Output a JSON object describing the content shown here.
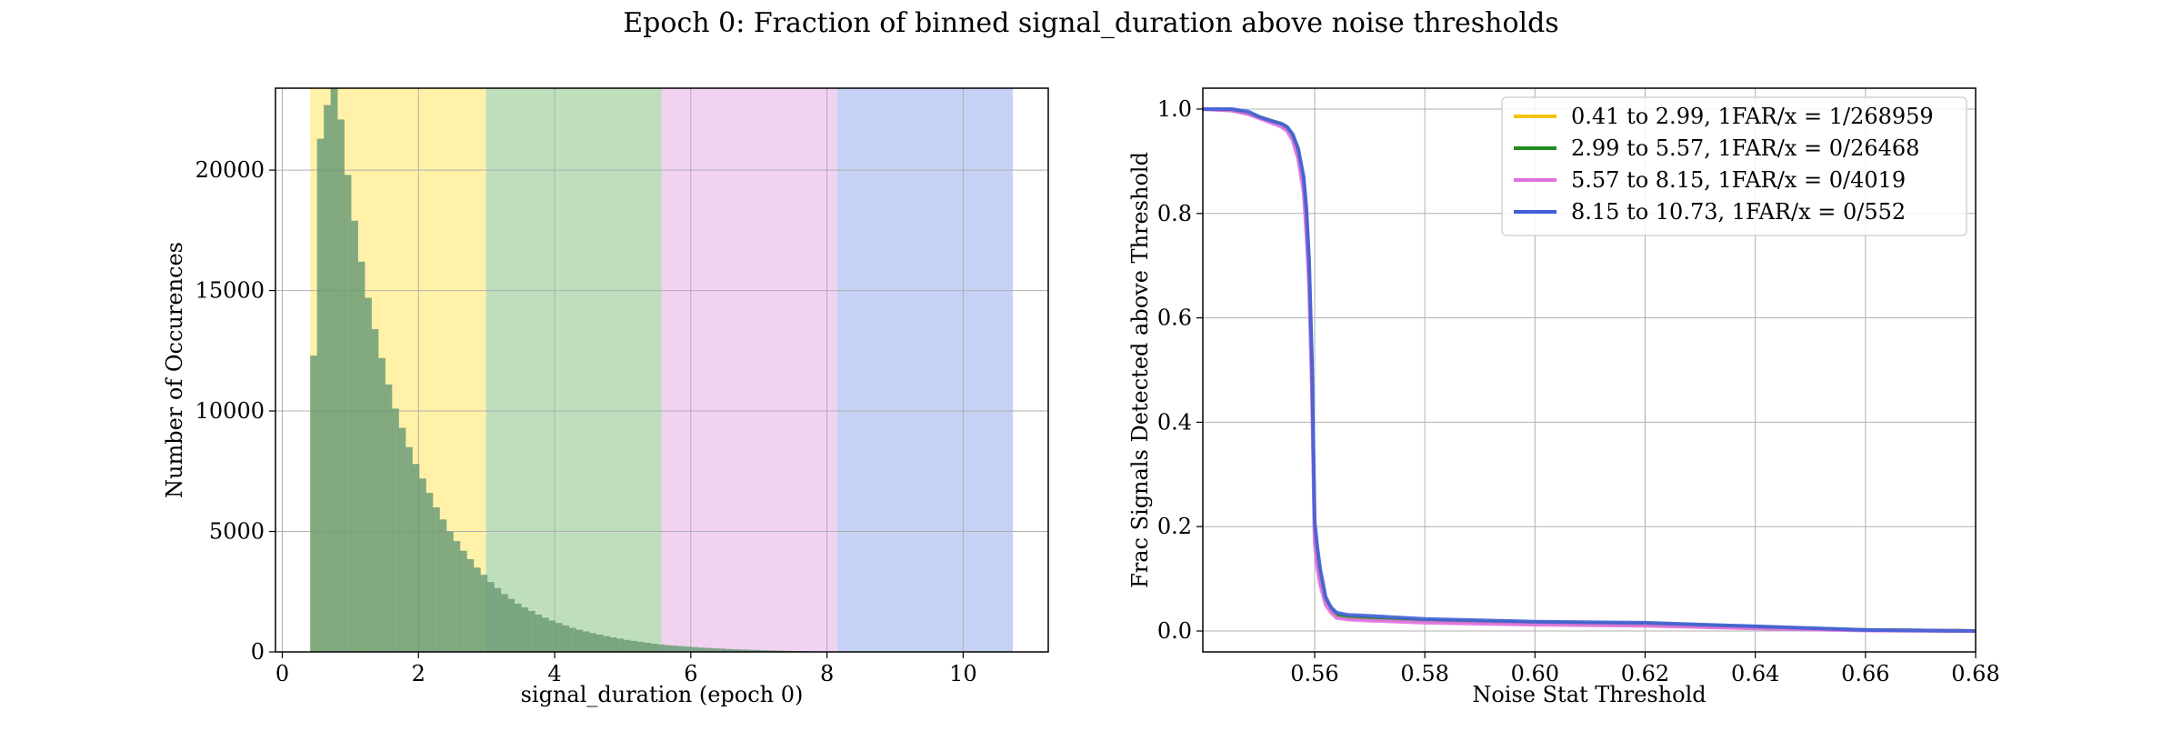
{
  "figure": {
    "title": "Epoch 0: Fraction of binned signal_duration above noise thresholds"
  },
  "colors": {
    "yellow": "#fff2a8",
    "green": "#bfdfbc",
    "pink": "#f1d2f1",
    "blue": "#c5d1f5",
    "hist": "#6d9c78",
    "grid": "#b0b0b0",
    "line_yellow": "#f5c400",
    "line_green": "#228b22",
    "line_pink": "#e070e0",
    "line_blue": "#4060d8"
  },
  "chart_data": [
    {
      "type": "bar",
      "subtype": "histogram",
      "xlabel": "signal_duration (epoch 0)",
      "ylabel": "Number of Occurences",
      "xlim": [
        -0.1,
        11.25
      ],
      "ylim": [
        0,
        23400
      ],
      "xticks": [
        0,
        2,
        4,
        6,
        8,
        10
      ],
      "yticks": [
        0,
        5000,
        10000,
        15000,
        20000
      ],
      "grid": true,
      "bin_edges_start": 0.41,
      "bin_width": 0.1,
      "counts": [
        12300,
        21300,
        22700,
        23400,
        22100,
        19800,
        17900,
        16200,
        14700,
        13400,
        12200,
        11100,
        10100,
        9300,
        8500,
        7800,
        7200,
        6600,
        6000,
        5500,
        5000,
        4600,
        4200,
        3850,
        3500,
        3200,
        2900,
        2650,
        2400,
        2200,
        2000,
        1850,
        1700,
        1550,
        1420,
        1300,
        1200,
        1100,
        1000,
        920,
        850,
        780,
        720,
        660,
        600,
        550,
        500,
        460,
        420,
        380,
        340,
        310,
        280,
        260,
        240,
        220,
        200,
        180,
        165,
        150,
        135,
        120,
        110,
        100,
        90,
        80,
        70,
        62,
        55,
        48,
        42,
        36,
        30,
        26,
        22,
        18,
        15,
        12,
        10,
        8,
        6,
        5,
        4,
        3,
        3,
        2,
        2,
        1,
        1,
        1,
        1,
        0,
        0,
        0,
        0,
        0,
        0,
        0,
        0,
        0,
        0,
        0,
        0
      ],
      "bands": [
        {
          "from": 0.41,
          "to": 2.99,
          "color": "yellow"
        },
        {
          "from": 2.99,
          "to": 5.57,
          "color": "green"
        },
        {
          "from": 5.57,
          "to": 8.15,
          "color": "pink"
        },
        {
          "from": 8.15,
          "to": 10.73,
          "color": "blue"
        }
      ]
    },
    {
      "type": "line",
      "xlabel": "Noise Stat Threshold",
      "ylabel": "Frac Signals Detected above Threshold",
      "xlim": [
        0.5397,
        0.68
      ],
      "ylim": [
        -0.04,
        1.04
      ],
      "xticks": [
        0.56,
        0.58,
        0.6,
        0.62,
        0.64,
        0.66,
        0.68
      ],
      "yticks": [
        0.0,
        0.2,
        0.4,
        0.6,
        0.8,
        1.0
      ],
      "grid": true,
      "legend_position": "top-right",
      "series": [
        {
          "name": "0.41 to 2.99, 1FAR/x = 1/268959",
          "color": "line_yellow",
          "x": [
            0.5397,
            0.545,
            0.548,
            0.55,
            0.552,
            0.554,
            0.555,
            0.556,
            0.557,
            0.558,
            0.5585,
            0.559,
            0.5595,
            0.56,
            0.5605,
            0.561,
            0.562,
            0.563,
            0.564,
            0.566,
            0.57,
            0.58,
            0.6,
            0.62,
            0.64,
            0.66,
            0.68
          ],
          "y": [
            1.0,
            0.998,
            0.992,
            0.985,
            0.978,
            0.972,
            0.965,
            0.95,
            0.92,
            0.86,
            0.8,
            0.7,
            0.5,
            0.2,
            0.15,
            0.11,
            0.06,
            0.042,
            0.032,
            0.027,
            0.025,
            0.02,
            0.015,
            0.012,
            0.007,
            0.002,
            0.0
          ]
        },
        {
          "name": "2.99 to 5.57, 1FAR/x = 0/26468",
          "color": "line_green",
          "x": [
            0.5397,
            0.545,
            0.548,
            0.55,
            0.552,
            0.554,
            0.555,
            0.556,
            0.557,
            0.558,
            0.5585,
            0.559,
            0.5595,
            0.56,
            0.5605,
            0.561,
            0.562,
            0.563,
            0.564,
            0.566,
            0.57,
            0.58,
            0.6,
            0.62,
            0.64,
            0.66,
            0.68
          ],
          "y": [
            1.0,
            0.998,
            0.991,
            0.984,
            0.977,
            0.97,
            0.963,
            0.948,
            0.918,
            0.858,
            0.79,
            0.69,
            0.49,
            0.19,
            0.14,
            0.1,
            0.058,
            0.04,
            0.03,
            0.026,
            0.024,
            0.02,
            0.016,
            0.013,
            0.008,
            0.002,
            0.0
          ]
        },
        {
          "name": "5.57 to 8.15, 1FAR/x = 0/4019",
          "color": "line_pink",
          "x": [
            0.5397,
            0.545,
            0.548,
            0.55,
            0.552,
            0.554,
            0.555,
            0.556,
            0.557,
            0.558,
            0.5585,
            0.559,
            0.5595,
            0.56,
            0.5605,
            0.561,
            0.562,
            0.563,
            0.564,
            0.566,
            0.57,
            0.58,
            0.6,
            0.62,
            0.64,
            0.66,
            0.68
          ],
          "y": [
            1.0,
            0.997,
            0.99,
            0.982,
            0.974,
            0.966,
            0.958,
            0.94,
            0.905,
            0.84,
            0.76,
            0.66,
            0.46,
            0.17,
            0.12,
            0.09,
            0.05,
            0.035,
            0.025,
            0.022,
            0.02,
            0.016,
            0.012,
            0.01,
            0.005,
            0.001,
            0.0
          ]
        },
        {
          "name": "8.15 to 10.73, 1FAR/x = 0/552",
          "color": "line_blue",
          "x": [
            0.5397,
            0.545,
            0.548,
            0.55,
            0.552,
            0.554,
            0.555,
            0.556,
            0.557,
            0.558,
            0.5585,
            0.559,
            0.5595,
            0.56,
            0.5605,
            0.561,
            0.562,
            0.563,
            0.564,
            0.566,
            0.57,
            0.58,
            0.6,
            0.62,
            0.64,
            0.66,
            0.68
          ],
          "y": [
            1.0,
            1.0,
            0.995,
            0.985,
            0.978,
            0.972,
            0.966,
            0.952,
            0.925,
            0.87,
            0.81,
            0.71,
            0.52,
            0.21,
            0.16,
            0.12,
            0.065,
            0.045,
            0.035,
            0.031,
            0.029,
            0.023,
            0.018,
            0.016,
            0.009,
            0.002,
            0.0
          ]
        }
      ]
    }
  ]
}
